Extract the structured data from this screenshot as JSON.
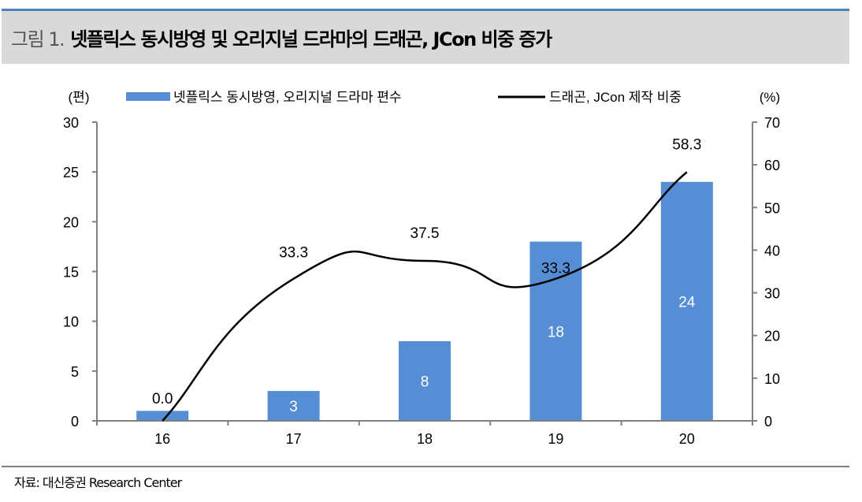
{
  "title": {
    "number": "그림 1.",
    "text": "넷플릭스 동시방영 및 오리지널 드라마의 드래곤, JCon 비중 증가"
  },
  "source": "자료: 대신증권 Research Center",
  "chart_data": {
    "type": "bar+line",
    "categories": [
      "16",
      "17",
      "18",
      "19",
      "20"
    ],
    "left_axis": {
      "unit": "(편)",
      "ylim": [
        0,
        30
      ],
      "ticks": [
        0,
        5,
        10,
        15,
        20,
        25,
        30
      ]
    },
    "right_axis": {
      "unit": "(%)",
      "ylim": [
        0,
        70
      ],
      "ticks": [
        0,
        10,
        20,
        30,
        40,
        50,
        60,
        70
      ]
    },
    "series": [
      {
        "name": "넷플릭스 동시방영, 오리지널 드라마 편수",
        "type": "bar",
        "axis": "left",
        "color": "#558ed5",
        "values": [
          1,
          3,
          8,
          18,
          24
        ],
        "labels": [
          "",
          "3",
          "8",
          "18",
          "24"
        ]
      },
      {
        "name": "드래곤, JCon 제작 비중",
        "type": "line",
        "axis": "right",
        "color": "#000000",
        "smooth": true,
        "values": [
          0.0,
          33.3,
          37.5,
          33.3,
          58.3
        ],
        "labels": [
          "0.0",
          "33.3",
          "37.5",
          "33.3",
          "58.3"
        ]
      }
    ],
    "grid": false,
    "legend": "top"
  }
}
